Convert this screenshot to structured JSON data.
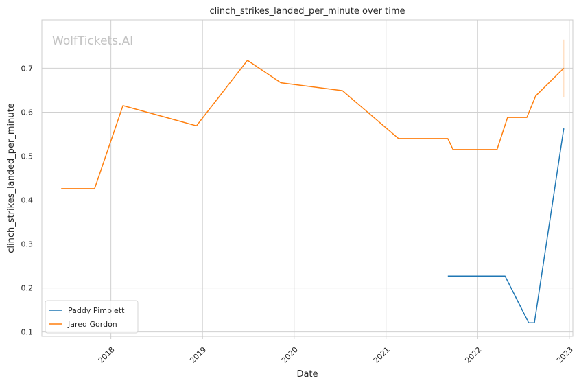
{
  "chart_data": {
    "type": "line",
    "title": "clinch_strikes_landed_per_minute over time",
    "xlabel": "Date",
    "ylabel": "clinch_strikes_landed_per_minute",
    "watermark": "WolfTickets.AI",
    "x_ticks": [
      "2018",
      "2019",
      "2020",
      "2021",
      "2022",
      "2023"
    ],
    "y_ticks": [
      "0.1",
      "0.2",
      "0.3",
      "0.4",
      "0.5",
      "0.6",
      "0.7"
    ],
    "xlim": [
      "2017-04-01",
      "2023-01-15"
    ],
    "ylim": [
      0.09,
      0.81
    ],
    "grid": true,
    "legend_position": "lower-left",
    "series": [
      {
        "name": "Paddy Pimblett",
        "color": "#1f77b4",
        "points": [
          [
            "2021-09-04",
            0.227
          ],
          [
            "2022-04-20",
            0.227
          ],
          [
            "2022-07-23",
            0.121
          ],
          [
            "2022-08-15",
            0.121
          ],
          [
            "2022-12-10",
            0.563
          ]
        ]
      },
      {
        "name": "Jared Gordon",
        "color": "#ff7f0e",
        "points": [
          [
            "2017-06-17",
            0.426
          ],
          [
            "2017-10-28",
            0.426
          ],
          [
            "2018-02-18",
            0.615
          ],
          [
            "2018-12-08",
            0.569
          ],
          [
            "2019-06-29",
            0.718
          ],
          [
            "2019-11-09",
            0.667
          ],
          [
            "2020-07-11",
            0.649
          ],
          [
            "2021-02-20",
            0.54
          ],
          [
            "2021-09-04",
            0.54
          ],
          [
            "2021-09-25",
            0.515
          ],
          [
            "2022-03-19",
            0.515
          ],
          [
            "2022-04-30",
            0.588
          ],
          [
            "2022-07-16",
            0.588
          ],
          [
            "2022-08-20",
            0.637
          ],
          [
            "2022-12-10",
            0.7
          ]
        ]
      }
    ],
    "error_bar": {
      "x": "2022-12-10",
      "y_low": 0.635,
      "y_high": 0.765,
      "color": "#ff7f0e"
    }
  }
}
